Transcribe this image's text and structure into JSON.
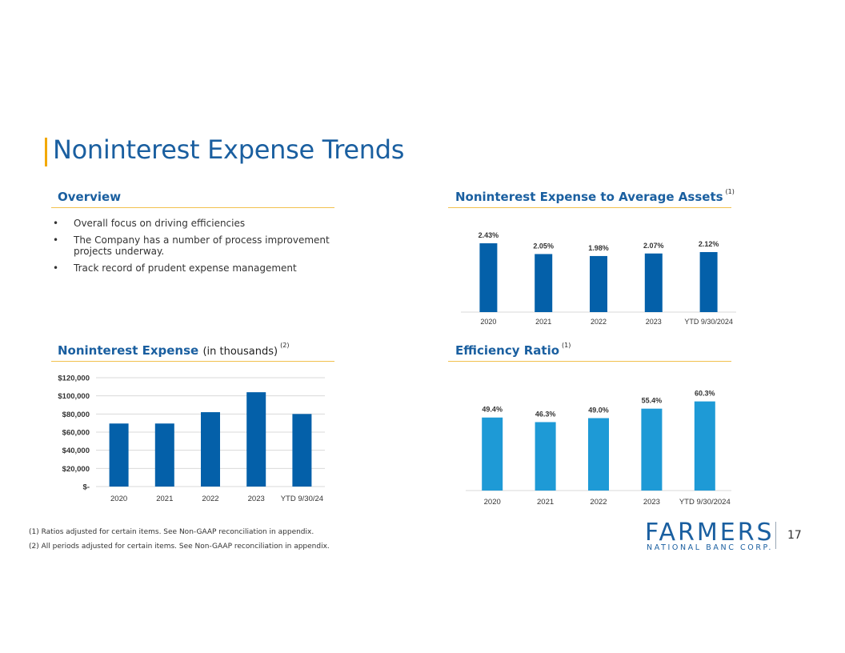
{
  "page": {
    "title": "Noninterest Expense Trends",
    "page_number": "17"
  },
  "overview": {
    "heading": "Overview",
    "bullet_marker": "•",
    "bullets": [
      "Overall focus on driving efficiencies",
      "The Company has a number of process improvement projects underway.",
      "Track record of prudent expense management"
    ]
  },
  "footnotes": [
    "(1) Ratios adjusted for certain items. See Non-GAAP reconciliation in appendix.",
    "(2) All periods adjusted for certain items. See Non-GAAP reconciliation in appendix."
  ],
  "logo": {
    "main_text": "FARMERS",
    "sub_text": "NATIONAL BANC CORP."
  },
  "colors": {
    "brand_blue": "#1a5fa0",
    "bar_dark": "#0460a9",
    "bar_light": "#1e9ad6",
    "accent_gold": "#f2a900"
  },
  "chart_data": [
    {
      "id": "avg_assets",
      "type": "bar",
      "title": "Noninterest Expense to Average Assets",
      "title_note": "(1)",
      "categories": [
        "2020",
        "2021",
        "2022",
        "2023",
        "YTD 9/30/2024"
      ],
      "values": [
        2.43,
        2.05,
        1.98,
        2.07,
        2.12
      ],
      "data_labels": [
        "2.43%",
        "2.05%",
        "1.98%",
        "2.07%",
        "2.12%"
      ],
      "ylim": [
        0,
        2.6
      ],
      "color": "#0460a9",
      "grid": false
    },
    {
      "id": "expense",
      "type": "bar",
      "title": "Noninterest Expense",
      "title_sub": "(in thousands)",
      "title_note": "(2)",
      "categories": [
        "2020",
        "2021",
        "2022",
        "2023",
        "YTD 9/30/24"
      ],
      "values": [
        69500,
        69500,
        82000,
        104000,
        80000
      ],
      "yticks": [
        0,
        20000,
        40000,
        60000,
        80000,
        100000,
        120000
      ],
      "ytick_labels": [
        "$-",
        "$20,000",
        "$40,000",
        "$60,000",
        "$80,000",
        "$100,000",
        "$120,000"
      ],
      "ylim": [
        0,
        120000
      ],
      "color": "#0460a9",
      "grid": true
    },
    {
      "id": "efficiency",
      "type": "bar",
      "title": "Efficiency Ratio",
      "title_note": "(1)",
      "categories": [
        "2020",
        "2021",
        "2022",
        "2023",
        "YTD 9/30/2024"
      ],
      "values": [
        49.4,
        46.3,
        49.0,
        55.4,
        60.3
      ],
      "data_labels": [
        "49.4%",
        "46.3%",
        "49.0%",
        "55.4%",
        "60.3%"
      ],
      "ylim": [
        0,
        72
      ],
      "color": "#1e9ad6",
      "grid": false
    }
  ]
}
